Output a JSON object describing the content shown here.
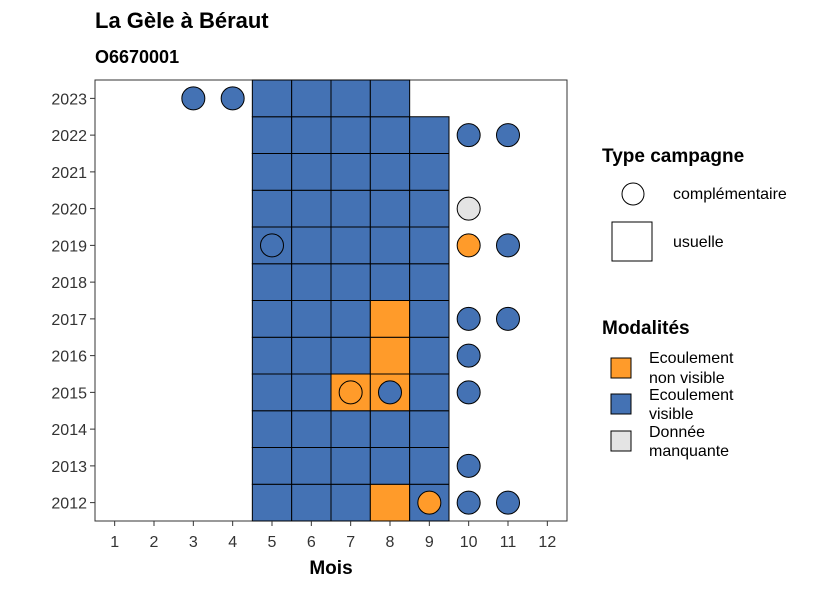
{
  "chart_data": {
    "type": "heatmap",
    "title": "La Gèle à Béraut",
    "subtitle": "O6670001",
    "xlabel": "Mois",
    "x_ticks": [
      1,
      2,
      3,
      4,
      5,
      6,
      7,
      8,
      9,
      10,
      11,
      12
    ],
    "y_ticks": [
      2012,
      2013,
      2014,
      2015,
      2016,
      2017,
      2018,
      2019,
      2020,
      2021,
      2022,
      2023
    ],
    "xlim": [
      0.5,
      12.5
    ],
    "ylim": [
      2011.5,
      2023.5
    ],
    "colors": {
      "ecoulement_non_visible": "#FF9B2A",
      "ecoulement_visible": "#4472B4",
      "donnee_manquante": "#E4E4E4"
    },
    "legend_type": {
      "title": "Type campagne",
      "items": [
        {
          "label": "complémentaire",
          "shape": "circle"
        },
        {
          "label": "usuelle",
          "shape": "square"
        }
      ]
    },
    "legend_modalites": {
      "title": "Modalités",
      "items": [
        {
          "label_lines": [
            "Ecoulement",
            "non visible"
          ],
          "key": "ecoulement_non_visible"
        },
        {
          "label_lines": [
            "Ecoulement",
            "visible"
          ],
          "key": "ecoulement_visible"
        },
        {
          "label_lines": [
            "Donnée",
            "manquante"
          ],
          "key": "donnee_manquante"
        }
      ]
    },
    "usuelle": [
      {
        "year": 2012,
        "month": 5,
        "m": "ecoulement_visible"
      },
      {
        "year": 2012,
        "month": 6,
        "m": "ecoulement_visible"
      },
      {
        "year": 2012,
        "month": 7,
        "m": "ecoulement_visible"
      },
      {
        "year": 2012,
        "month": 8,
        "m": "ecoulement_non_visible"
      },
      {
        "year": 2012,
        "month": 9,
        "m": "ecoulement_visible"
      },
      {
        "year": 2013,
        "month": 5,
        "m": "ecoulement_visible"
      },
      {
        "year": 2013,
        "month": 6,
        "m": "ecoulement_visible"
      },
      {
        "year": 2013,
        "month": 7,
        "m": "ecoulement_visible"
      },
      {
        "year": 2013,
        "month": 8,
        "m": "ecoulement_visible"
      },
      {
        "year": 2013,
        "month": 9,
        "m": "ecoulement_visible"
      },
      {
        "year": 2014,
        "month": 5,
        "m": "ecoulement_visible"
      },
      {
        "year": 2014,
        "month": 6,
        "m": "ecoulement_visible"
      },
      {
        "year": 2014,
        "month": 7,
        "m": "ecoulement_visible"
      },
      {
        "year": 2014,
        "month": 8,
        "m": "ecoulement_visible"
      },
      {
        "year": 2014,
        "month": 9,
        "m": "ecoulement_visible"
      },
      {
        "year": 2015,
        "month": 5,
        "m": "ecoulement_visible"
      },
      {
        "year": 2015,
        "month": 6,
        "m": "ecoulement_visible"
      },
      {
        "year": 2015,
        "month": 7,
        "m": "ecoulement_non_visible"
      },
      {
        "year": 2015,
        "month": 8,
        "m": "ecoulement_non_visible"
      },
      {
        "year": 2015,
        "month": 9,
        "m": "ecoulement_visible"
      },
      {
        "year": 2016,
        "month": 5,
        "m": "ecoulement_visible"
      },
      {
        "year": 2016,
        "month": 6,
        "m": "ecoulement_visible"
      },
      {
        "year": 2016,
        "month": 7,
        "m": "ecoulement_visible"
      },
      {
        "year": 2016,
        "month": 8,
        "m": "ecoulement_non_visible"
      },
      {
        "year": 2016,
        "month": 9,
        "m": "ecoulement_visible"
      },
      {
        "year": 2017,
        "month": 5,
        "m": "ecoulement_visible"
      },
      {
        "year": 2017,
        "month": 6,
        "m": "ecoulement_visible"
      },
      {
        "year": 2017,
        "month": 7,
        "m": "ecoulement_visible"
      },
      {
        "year": 2017,
        "month": 8,
        "m": "ecoulement_non_visible"
      },
      {
        "year": 2017,
        "month": 9,
        "m": "ecoulement_visible"
      },
      {
        "year": 2018,
        "month": 5,
        "m": "ecoulement_visible"
      },
      {
        "year": 2018,
        "month": 6,
        "m": "ecoulement_visible"
      },
      {
        "year": 2018,
        "month": 7,
        "m": "ecoulement_visible"
      },
      {
        "year": 2018,
        "month": 8,
        "m": "ecoulement_visible"
      },
      {
        "year": 2018,
        "month": 9,
        "m": "ecoulement_visible"
      },
      {
        "year": 2019,
        "month": 5,
        "m": "ecoulement_visible"
      },
      {
        "year": 2019,
        "month": 6,
        "m": "ecoulement_visible"
      },
      {
        "year": 2019,
        "month": 7,
        "m": "ecoulement_visible"
      },
      {
        "year": 2019,
        "month": 8,
        "m": "ecoulement_visible"
      },
      {
        "year": 2019,
        "month": 9,
        "m": "ecoulement_visible"
      },
      {
        "year": 2020,
        "month": 5,
        "m": "ecoulement_visible"
      },
      {
        "year": 2020,
        "month": 6,
        "m": "ecoulement_visible"
      },
      {
        "year": 2020,
        "month": 7,
        "m": "ecoulement_visible"
      },
      {
        "year": 2020,
        "month": 8,
        "m": "ecoulement_visible"
      },
      {
        "year": 2020,
        "month": 9,
        "m": "ecoulement_visible"
      },
      {
        "year": 2021,
        "month": 5,
        "m": "ecoulement_visible"
      },
      {
        "year": 2021,
        "month": 6,
        "m": "ecoulement_visible"
      },
      {
        "year": 2021,
        "month": 7,
        "m": "ecoulement_visible"
      },
      {
        "year": 2021,
        "month": 8,
        "m": "ecoulement_visible"
      },
      {
        "year": 2021,
        "month": 9,
        "m": "ecoulement_visible"
      },
      {
        "year": 2022,
        "month": 5,
        "m": "ecoulement_visible"
      },
      {
        "year": 2022,
        "month": 6,
        "m": "ecoulement_visible"
      },
      {
        "year": 2022,
        "month": 7,
        "m": "ecoulement_visible"
      },
      {
        "year": 2022,
        "month": 8,
        "m": "ecoulement_visible"
      },
      {
        "year": 2022,
        "month": 9,
        "m": "ecoulement_visible"
      },
      {
        "year": 2023,
        "month": 5,
        "m": "ecoulement_visible"
      },
      {
        "year": 2023,
        "month": 6,
        "m": "ecoulement_visible"
      },
      {
        "year": 2023,
        "month": 7,
        "m": "ecoulement_visible"
      },
      {
        "year": 2023,
        "month": 8,
        "m": "ecoulement_visible"
      }
    ],
    "complementaire": [
      {
        "year": 2012,
        "month": 9,
        "m": "ecoulement_non_visible"
      },
      {
        "year": 2012,
        "month": 10,
        "m": "ecoulement_visible"
      },
      {
        "year": 2012,
        "month": 11,
        "m": "ecoulement_visible"
      },
      {
        "year": 2013,
        "month": 10,
        "m": "ecoulement_visible"
      },
      {
        "year": 2015,
        "month": 7,
        "m": "ecoulement_non_visible"
      },
      {
        "year": 2015,
        "month": 8,
        "m": "ecoulement_visible"
      },
      {
        "year": 2015,
        "month": 10,
        "m": "ecoulement_visible"
      },
      {
        "year": 2016,
        "month": 10,
        "m": "ecoulement_visible"
      },
      {
        "year": 2017,
        "month": 10,
        "m": "ecoulement_visible"
      },
      {
        "year": 2017,
        "month": 11,
        "m": "ecoulement_visible"
      },
      {
        "year": 2019,
        "month": 5,
        "m": "ecoulement_visible"
      },
      {
        "year": 2019,
        "month": 10,
        "m": "ecoulement_non_visible"
      },
      {
        "year": 2019,
        "month": 11,
        "m": "ecoulement_visible"
      },
      {
        "year": 2020,
        "month": 10,
        "m": "donnee_manquante"
      },
      {
        "year": 2022,
        "month": 10,
        "m": "ecoulement_visible"
      },
      {
        "year": 2022,
        "month": 11,
        "m": "ecoulement_visible"
      },
      {
        "year": 2023,
        "month": 3,
        "m": "ecoulement_visible"
      },
      {
        "year": 2023,
        "month": 4,
        "m": "ecoulement_visible"
      }
    ]
  }
}
